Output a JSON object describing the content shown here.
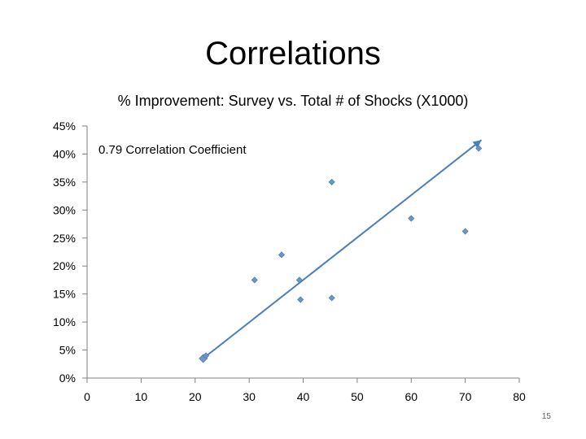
{
  "slide": {
    "title": "Correlations",
    "page_number": "15"
  },
  "colors": {
    "point": "#4a7ebb",
    "point_fill": "#6f95c8",
    "trendline": "#4a7ebb",
    "axis": "#808080"
  },
  "chart_data": {
    "type": "scatter",
    "title": "% Improvement: Survey vs. Total # of Shocks (X1000)",
    "xlabel": "",
    "ylabel": "",
    "xlim": [
      0,
      80
    ],
    "ylim": [
      0,
      0.45
    ],
    "x_ticks": [
      0,
      10,
      20,
      30,
      40,
      50,
      60,
      70,
      80
    ],
    "y_ticks": [
      0,
      0.05,
      0.1,
      0.15,
      0.2,
      0.25,
      0.3,
      0.35,
      0.4,
      0.45
    ],
    "y_tick_labels": [
      "0%",
      "5%",
      "10%",
      "15%",
      "20%",
      "25%",
      "30%",
      "35%",
      "40%",
      "45%"
    ],
    "grid": false,
    "marker": "diamond",
    "annotation": "0.79 Correlation Coefficient",
    "points": [
      {
        "x": 22,
        "y": 0.04
      },
      {
        "x": 31,
        "y": 0.175
      },
      {
        "x": 36,
        "y": 0.22
      },
      {
        "x": 39.3,
        "y": 0.175
      },
      {
        "x": 39.5,
        "y": 0.14
      },
      {
        "x": 45.3,
        "y": 0.143
      },
      {
        "x": 45.3,
        "y": 0.35
      },
      {
        "x": 60,
        "y": 0.285
      },
      {
        "x": 70,
        "y": 0.262
      },
      {
        "x": 72.5,
        "y": 0.41
      }
    ],
    "trendline": {
      "from": {
        "x": 21.5,
        "y": 0.035
      },
      "to": {
        "x": 73,
        "y": 0.425
      }
    }
  }
}
